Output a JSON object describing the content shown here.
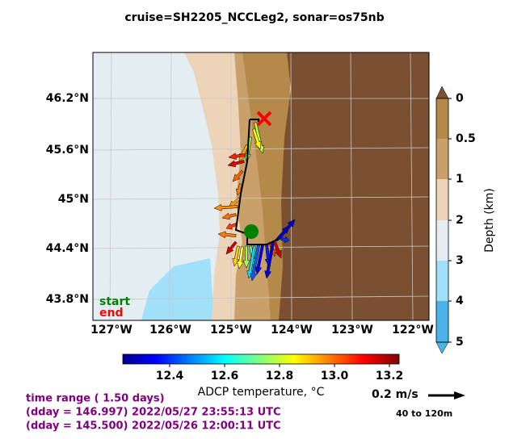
{
  "title": "cruise=SH2205_NCCLeg2,   sonar=os75nb",
  "map": {
    "lat_labels": [
      "46.2°N",
      "45.6°N",
      "45°N",
      "44.4°N",
      "43.8°N"
    ],
    "lon_labels": [
      "127°W",
      "126°W",
      "125°W",
      "124°W",
      "123°W",
      "122°W"
    ],
    "start_label": "start",
    "end_label": "end"
  },
  "depth_colorbar": {
    "ticks": [
      "0",
      "0.5",
      "1",
      "2",
      "3",
      "4",
      "5"
    ],
    "label": "Depth (km)"
  },
  "temperature_colorbar": {
    "ticks": [
      "12.4",
      "12.6",
      "12.8",
      "13.0",
      "13.2"
    ],
    "label": "ADCP temperature, °C"
  },
  "scale": {
    "speed": "0.2 m/s",
    "depth_range": "40 to 120m"
  },
  "time_range": [
    "time range ( 1.50 days)",
    "(dday = 146.997) 2022/05/27 23:55:13 UTC",
    "(dday = 145.500) 2022/05/26 12:00:11 UTC"
  ]
}
